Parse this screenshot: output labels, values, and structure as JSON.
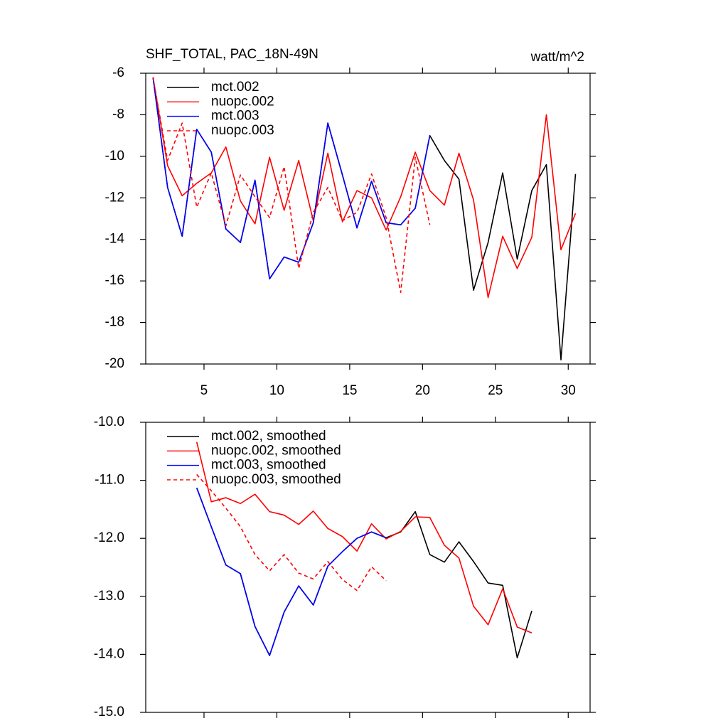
{
  "chart_data": [
    {
      "type": "line",
      "title": "SHF_TOTAL, PAC_18N-49N",
      "units": "watt/m^2",
      "xlim": [
        1,
        31.5
      ],
      "xticks": [
        5,
        10,
        15,
        20,
        25,
        30
      ],
      "show_xtick_labels": true,
      "ylim": [
        -20,
        -6
      ],
      "yticks": [
        -20,
        -18,
        -16,
        -14,
        -12,
        -10,
        -8,
        -6
      ],
      "series": [
        {
          "name": "mct.002",
          "color": "#000000",
          "dash": false,
          "x": [
            1.5,
            2.5,
            3.5,
            4.5,
            5.5,
            6.5,
            7.5,
            8.5,
            9.5,
            10.5,
            11.5,
            12.5,
            13.5,
            14.5,
            15.5,
            16.5,
            17.5,
            18.5,
            19.5,
            20.5,
            21.5,
            22.5,
            23.5,
            24.5,
            25.5,
            26.5,
            27.5,
            28.5,
            29.5,
            30.5
          ],
          "values": [
            -6.2,
            -11.5,
            -13.85,
            -8.7,
            -9.8,
            -13.5,
            -14.15,
            -11.15,
            -15.9,
            -14.85,
            -15.1,
            -13.2,
            -8.4,
            -10.9,
            -13.45,
            -11.2,
            -13.2,
            -13.3,
            -12.5,
            -9.0,
            -10.2,
            -11.1,
            -16.45,
            -14.15,
            -10.8,
            -14.95,
            -11.65,
            -10.4,
            -19.8,
            -10.85
          ]
        },
        {
          "name": "nuopc.002",
          "color": "#ff0000",
          "dash": false,
          "x": [
            1.5,
            2.5,
            3.5,
            4.5,
            5.5,
            6.5,
            7.5,
            8.5,
            9.5,
            10.5,
            11.5,
            12.5,
            13.5,
            14.5,
            15.5,
            16.5,
            17.5,
            18.5,
            19.5,
            20.5,
            21.5,
            22.5,
            23.5,
            24.5,
            25.5,
            26.5,
            27.5,
            28.5,
            29.5,
            30.5
          ],
          "values": [
            -6.2,
            -10.45,
            -11.9,
            -11.3,
            -10.8,
            -9.55,
            -12.15,
            -13.25,
            -10.05,
            -12.6,
            -10.2,
            -13.1,
            -9.85,
            -13.15,
            -11.65,
            -12.0,
            -13.55,
            -11.95,
            -9.8,
            -11.65,
            -12.35,
            -9.85,
            -12.1,
            -16.8,
            -13.85,
            -15.4,
            -13.9,
            -8.0,
            -14.5,
            -12.75
          ]
        },
        {
          "name": "mct.003",
          "color": "#0000ff",
          "dash": false,
          "x": [
            1.5,
            2.5,
            3.5,
            4.5,
            5.5,
            6.5,
            7.5,
            8.5,
            9.5,
            10.5,
            11.5,
            12.5,
            13.5,
            14.5,
            15.5,
            16.5,
            17.5,
            18.5,
            19.5,
            20.5
          ],
          "values": [
            -6.2,
            -11.5,
            -13.85,
            -8.7,
            -9.8,
            -13.5,
            -14.15,
            -11.15,
            -15.9,
            -14.85,
            -15.1,
            -13.2,
            -8.4,
            -10.9,
            -13.45,
            -11.2,
            -13.2,
            -13.3,
            -12.5,
            -9.0
          ]
        },
        {
          "name": "nuopc.003",
          "color": "#ff0000",
          "dash": true,
          "x": [
            1.5,
            2.5,
            3.5,
            4.5,
            5.5,
            6.5,
            7.5,
            8.5,
            9.5,
            10.5,
            11.5,
            12.5,
            13.5,
            14.5,
            15.5,
            16.5,
            17.5,
            18.5,
            19.5,
            20.5
          ],
          "values": [
            -6.2,
            -10.2,
            -8.4,
            -12.45,
            -10.8,
            -13.35,
            -10.9,
            -11.95,
            -12.95,
            -10.5,
            -15.4,
            -12.7,
            -11.5,
            -13.1,
            -12.7,
            -10.85,
            -12.95,
            -16.55,
            -10.05,
            -13.3
          ]
        }
      ]
    },
    {
      "type": "line",
      "xlim": [
        1,
        31.5
      ],
      "xticks": [
        5,
        10,
        15,
        20,
        25,
        30
      ],
      "show_xtick_labels": false,
      "ylim": [
        -15,
        -10
      ],
      "yticks": [
        {
          "value": -15,
          "label": "-15.0"
        },
        {
          "value": -14,
          "label": "-14.0"
        },
        {
          "value": -13,
          "label": "-13.0"
        },
        {
          "value": -12,
          "label": "-12.0"
        },
        {
          "value": -11,
          "label": "-11.0"
        },
        {
          "value": -10,
          "label": "-10.0"
        }
      ],
      "series": [
        {
          "name": "mct.002, smoothed",
          "color": "#000000",
          "dash": false,
          "x": [
            4.5,
            5.5,
            6.5,
            7.5,
            8.5,
            9.5,
            10.5,
            11.5,
            12.5,
            13.5,
            14.5,
            15.5,
            16.5,
            17.5,
            18.5,
            19.5,
            20.5,
            21.5,
            22.5,
            23.5,
            24.5,
            25.5,
            26.5,
            27.5
          ],
          "values": [
            -11.13,
            -11.8,
            -12.46,
            -12.61,
            -13.52,
            -14.02,
            -13.27,
            -12.82,
            -13.15,
            -12.48,
            -12.23,
            -12.0,
            -11.89,
            -11.99,
            -11.89,
            -11.54,
            -12.28,
            -12.41,
            -12.06,
            -12.4,
            -12.77,
            -12.81,
            -14.06,
            -13.25
          ]
        },
        {
          "name": "nuopc.002, smoothed",
          "color": "#ff0000",
          "dash": false,
          "x": [
            4.5,
            5.5,
            6.5,
            7.5,
            8.5,
            9.5,
            10.5,
            11.5,
            12.5,
            13.5,
            14.5,
            15.5,
            16.5,
            17.5,
            18.5,
            19.5,
            20.5,
            21.5,
            22.5,
            23.5,
            24.5,
            25.5,
            26.5,
            27.5
          ],
          "values": [
            -10.34,
            -11.37,
            -11.3,
            -11.4,
            -11.24,
            -11.54,
            -11.6,
            -11.76,
            -11.53,
            -11.83,
            -11.97,
            -12.22,
            -11.75,
            -12.01,
            -11.88,
            -11.63,
            -11.64,
            -12.12,
            -12.34,
            -13.17,
            -13.49,
            -12.87,
            -13.53,
            -13.63
          ]
        },
        {
          "name": "mct.003, smoothed",
          "color": "#0000ff",
          "dash": false,
          "x": [
            4.5,
            5.5,
            6.5,
            7.5,
            8.5,
            9.5,
            10.5,
            11.5,
            12.5,
            13.5,
            14.5,
            15.5,
            16.5,
            17.5
          ],
          "values": [
            -11.13,
            -11.8,
            -12.46,
            -12.61,
            -13.52,
            -14.02,
            -13.27,
            -12.82,
            -13.15,
            -12.48,
            -12.23,
            -12.0,
            -11.89,
            -11.99
          ]
        },
        {
          "name": "nuopc.003, smoothed",
          "color": "#ff0000",
          "dash": true,
          "x": [
            4.5,
            5.5,
            6.5,
            7.5,
            8.5,
            9.5,
            10.5,
            11.5,
            12.5,
            13.5,
            14.5,
            15.5,
            16.5,
            17.5
          ],
          "values": [
            -10.9,
            -11.18,
            -11.48,
            -11.8,
            -12.28,
            -12.56,
            -12.28,
            -12.6,
            -12.7,
            -12.4,
            -12.71,
            -12.9,
            -12.49,
            -12.73
          ]
        }
      ]
    }
  ]
}
